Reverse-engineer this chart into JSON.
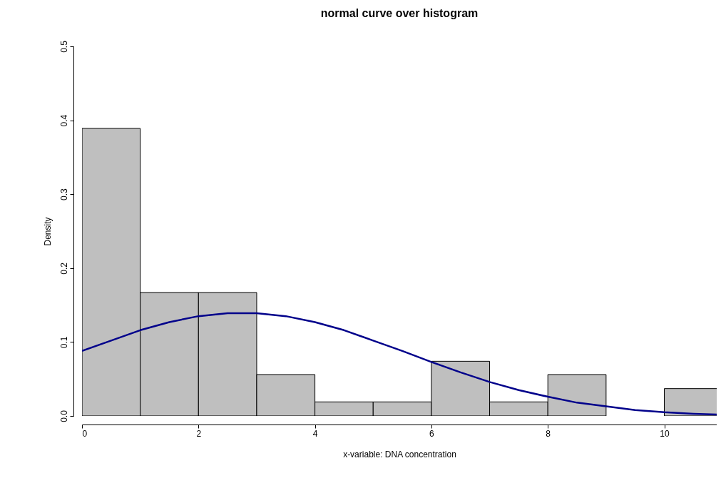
{
  "chart_data": {
    "type": "histogram",
    "title": "normal curve over histogram",
    "xlabel": "x-variable: DNA concentration",
    "ylabel": "Density",
    "bins": [
      0,
      1,
      2,
      3,
      4,
      5,
      6,
      7,
      8,
      9,
      10,
      11
    ],
    "values": [
      0.389,
      0.167,
      0.167,
      0.056,
      0.019,
      0.019,
      0.074,
      0.019,
      0.056,
      0,
      0.037
    ],
    "color": "#bfbfbf",
    "series": [
      {
        "type": "line",
        "color": "#00008b",
        "x": [
          0,
          0.5,
          1,
          1.5,
          2,
          2.5,
          3,
          3.5,
          4,
          4.5,
          5,
          5.5,
          6,
          6.5,
          7,
          7.5,
          8,
          8.5,
          9,
          9.5,
          10,
          10.5,
          10.9
        ],
        "values": [
          0.088,
          0.102,
          0.116,
          0.127,
          0.135,
          0.139,
          0.139,
          0.135,
          0.127,
          0.116,
          0.102,
          0.088,
          0.073,
          0.059,
          0.046,
          0.035,
          0.026,
          0.018,
          0.013,
          0.008,
          0.005,
          0.003,
          0.002
        ]
      }
    ],
    "xlim": [
      0,
      10.9
    ],
    "xticks": [
      0,
      2,
      4,
      6,
      8,
      10
    ],
    "ylim": [
      0,
      0.5
    ],
    "yticks": [
      {
        "value": 0,
        "label": "0.0"
      },
      {
        "value": 0.1,
        "label": "0.1"
      },
      {
        "value": 0.2,
        "label": "0.2"
      },
      {
        "value": 0.3,
        "label": "0.3"
      },
      {
        "value": 0.4,
        "label": "0.4"
      },
      {
        "value": 0.5,
        "label": "0.5"
      }
    ],
    "grid": false
  }
}
